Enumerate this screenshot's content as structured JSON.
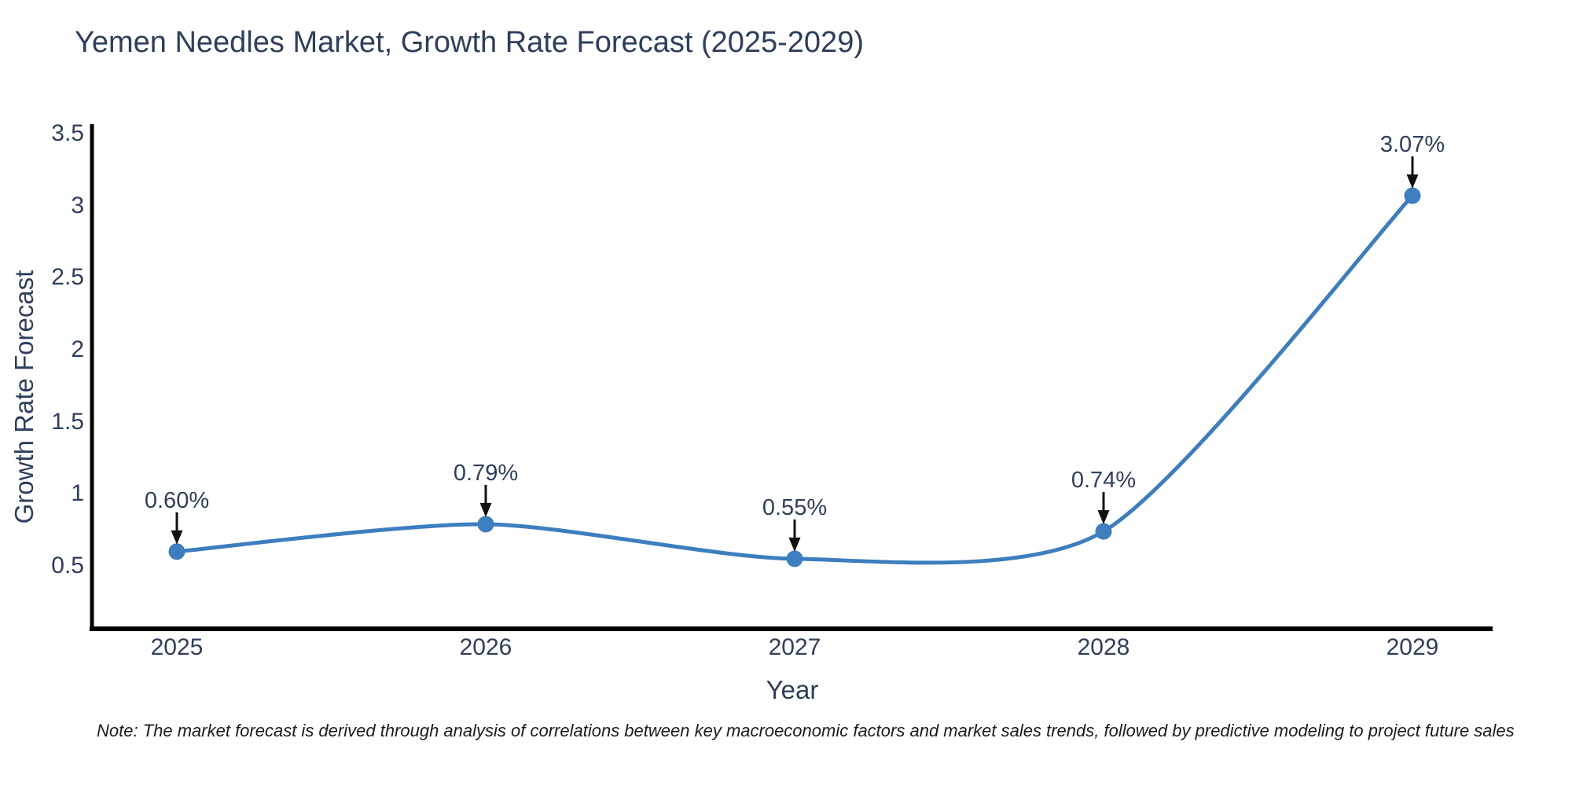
{
  "note": "Note: The market forecast is derived through analysis of correlations between key macroeconomic factors and market sales trends, followed by predictive modeling to project future sales",
  "chart_data": {
    "type": "line",
    "title": "Yemen Needles Market, Growth Rate Forecast (2025-2029)",
    "xlabel": "Year",
    "ylabel": "Growth Rate Forecast",
    "categories": [
      "2025",
      "2026",
      "2027",
      "2028",
      "2029"
    ],
    "values": [
      0.6,
      0.79,
      0.55,
      0.74,
      3.07
    ],
    "point_labels": [
      "0.60%",
      "0.79%",
      "0.55%",
      "0.74%",
      "3.07%"
    ],
    "y_ticks": [
      "3.5",
      "3",
      "2.5",
      "2",
      "1.5",
      "1",
      "0.5"
    ],
    "y_tick_values": [
      3.5,
      3.0,
      2.5,
      2.0,
      1.5,
      1.0,
      0.5
    ],
    "ylim": [
      0.064,
      3.566
    ],
    "line_shape": "spline",
    "grid": false,
    "legend": "none",
    "colors": {
      "line": "#3d7ebe",
      "marker": "#3d7ebe",
      "axis": "#000000",
      "arrow": "#111111",
      "text": "#2e3f5c",
      "note_text": "#1c1c1c",
      "background": "#ffffff"
    }
  }
}
